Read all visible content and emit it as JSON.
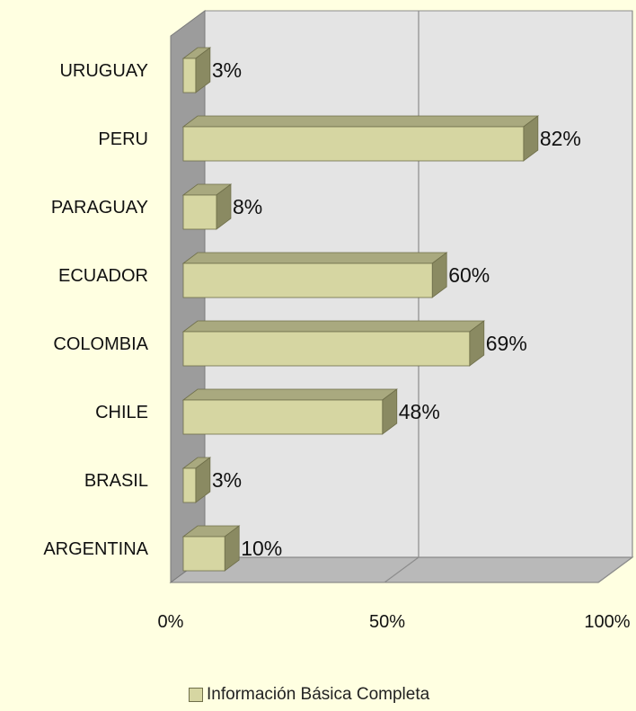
{
  "chart_data": {
    "type": "bar",
    "orientation": "horizontal",
    "categories": [
      "URUGUAY",
      "PERU",
      "PARAGUAY",
      "ECUADOR",
      "COLOMBIA",
      "CHILE",
      "BRASIL",
      "ARGENTINA"
    ],
    "series": [
      {
        "name": "Información Básica Completa",
        "values": [
          3,
          82,
          8,
          60,
          69,
          48,
          3,
          10
        ]
      }
    ],
    "data_labels": [
      "3%",
      "82%",
      "8%",
      "60%",
      "69%",
      "48%",
      "3%",
      "10%"
    ],
    "x_ticks": [
      "0%",
      "50%",
      "100%"
    ],
    "xlim": [
      0,
      100
    ],
    "grid": true,
    "legend_position": "bottom",
    "colors": {
      "bar_face": "#d6d6a2",
      "bar_top": "#a9a97f",
      "bar_side": "#8a8a62",
      "plot_back": "#e4e4e4",
      "plot_wall": "#9c9c9c",
      "plot_floor": "#b9b9b9",
      "background": "#ffffe1"
    }
  }
}
